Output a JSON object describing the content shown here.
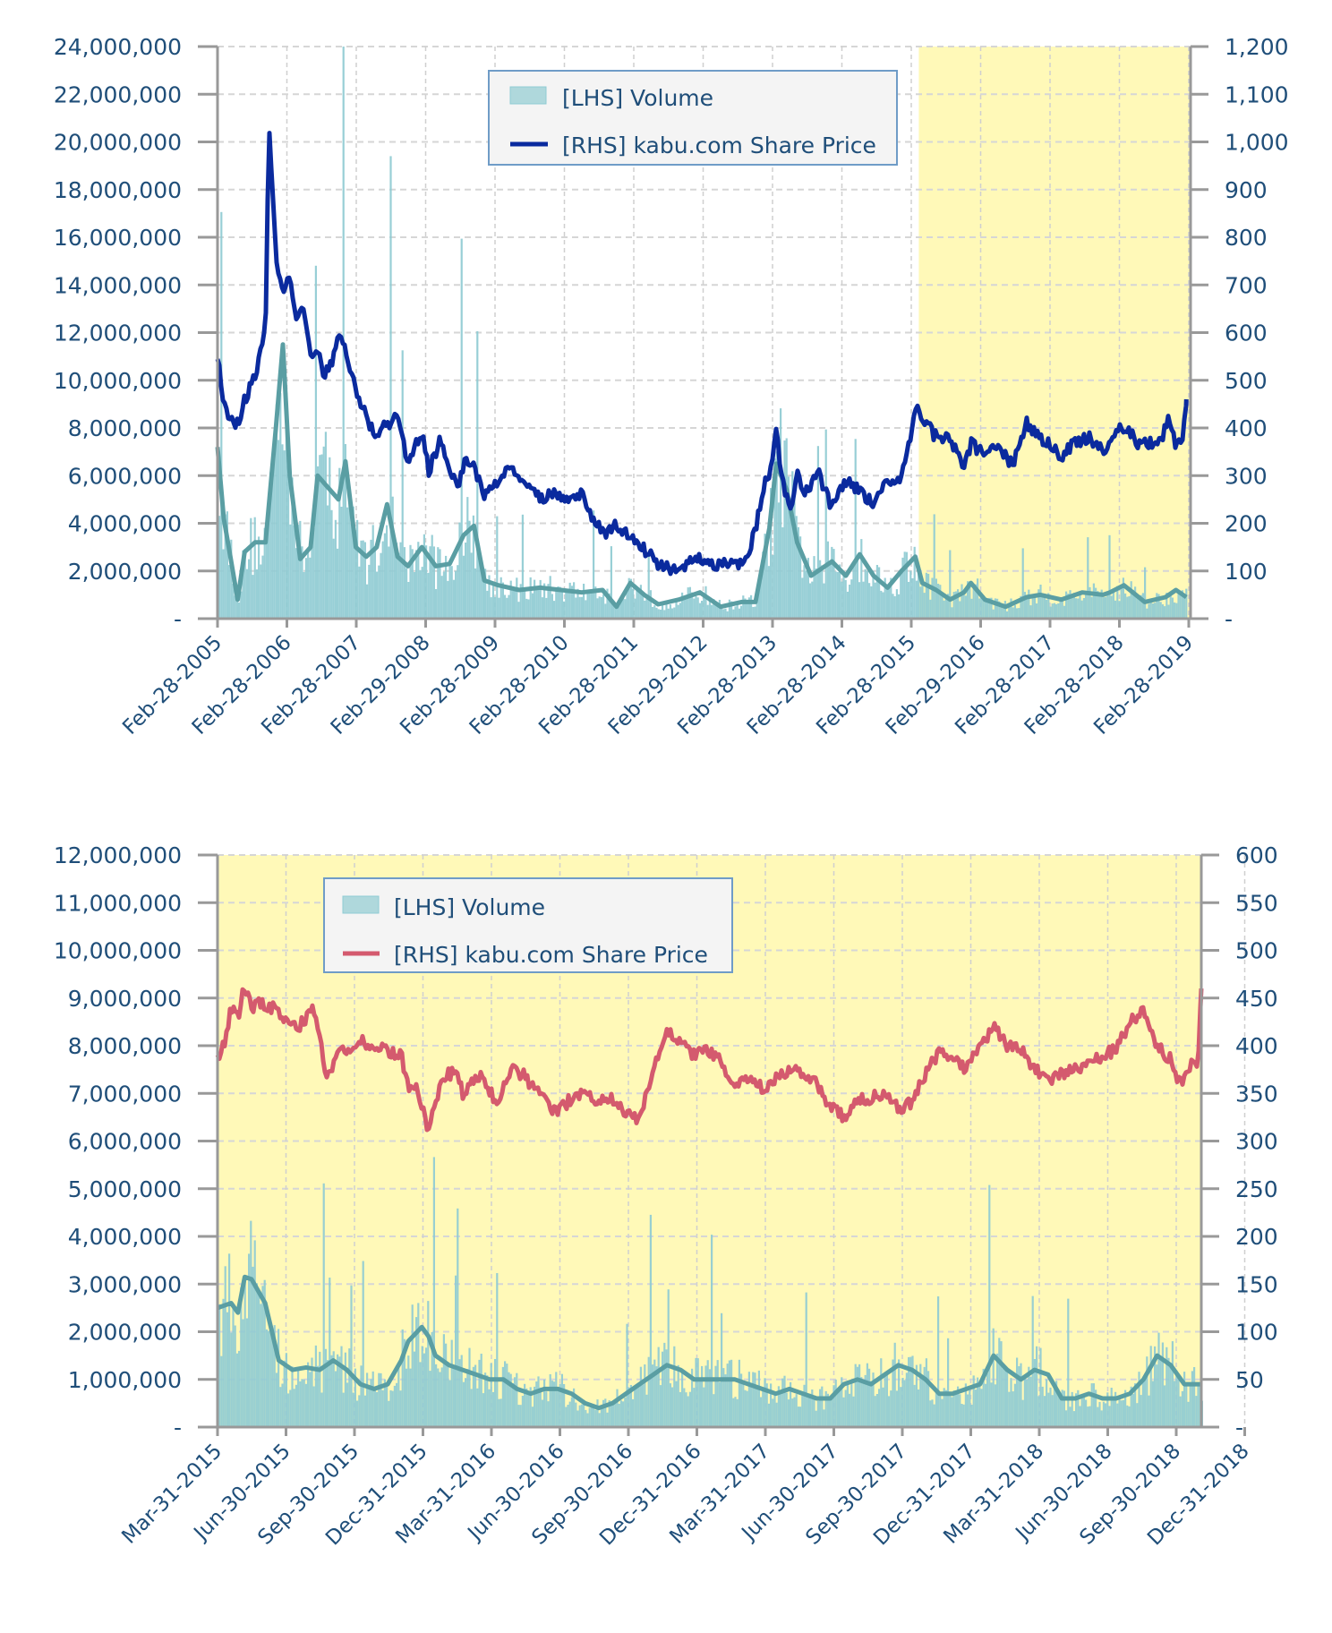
{
  "colors": {
    "volume_fill": "#8fcbd3",
    "volume_ma": "#5a9ea3",
    "price_top": "#0a2a9e",
    "price_bottom": "#d45a6e",
    "highlight": "#fff9b8",
    "axis_text": "#1f4e79"
  },
  "chart_data": [
    {
      "type": "bar+line",
      "title": "",
      "legend": {
        "position": "top-center",
        "entries": [
          {
            "label": "[LHS] Volume",
            "kind": "area"
          },
          {
            "label": "[RHS] kabu.com Share Price",
            "kind": "line"
          }
        ]
      },
      "y_left": {
        "range": [
          0,
          24000000
        ],
        "ticks": [
          0,
          2000000,
          4000000,
          6000000,
          8000000,
          10000000,
          12000000,
          14000000,
          16000000,
          18000000,
          20000000,
          22000000,
          24000000
        ],
        "tick_labels": [
          "-",
          "2,000,000",
          "4,000,000",
          "6,000,000",
          "8,000,000",
          "10,000,000",
          "12,000,000",
          "14,000,000",
          "16,000,000",
          "18,000,000",
          "20,000,000",
          "22,000,000",
          "24,000,000"
        ]
      },
      "y_right": {
        "range": [
          0,
          1200
        ],
        "ticks": [
          0,
          100,
          200,
          300,
          400,
          500,
          600,
          700,
          800,
          900,
          1000,
          1100,
          1200
        ],
        "tick_labels": [
          "-",
          "100",
          "200",
          "300",
          "400",
          "500",
          "600",
          "700",
          "800",
          "900",
          "1,000",
          "1,100",
          "1,200"
        ]
      },
      "x": {
        "range_years": [
          2005.16,
          2019.2
        ],
        "tick_labels": [
          "Feb-28-2005",
          "Feb-28-2006",
          "Feb-28-2007",
          "Feb-29-2008",
          "Feb-28-2009",
          "Feb-28-2010",
          "Feb-28-2011",
          "Feb-29-2012",
          "Feb-28-2013",
          "Feb-28-2014",
          "Feb-28-2015",
          "Feb-29-2016",
          "Feb-28-2017",
          "Feb-28-2018",
          "Feb-28-2019"
        ]
      },
      "highlight_region_years": [
        2015.25,
        2019.16
      ],
      "grid": true,
      "price_series": {
        "name": "[RHS] kabu.com Share Price",
        "x_years": [
          2005.16,
          2005.25,
          2005.35,
          2005.45,
          2005.55,
          2005.65,
          2005.75,
          2005.85,
          2005.9,
          2005.95,
          2006.0,
          2006.1,
          2006.2,
          2006.3,
          2006.4,
          2006.5,
          2006.6,
          2006.7,
          2006.8,
          2006.9,
          2007.0,
          2007.1,
          2007.2,
          2007.3,
          2007.45,
          2007.6,
          2007.75,
          2007.9,
          2008.1,
          2008.2,
          2008.35,
          2008.5,
          2008.6,
          2008.75,
          2008.9,
          2009.0,
          2009.2,
          2009.4,
          2009.6,
          2009.8,
          2010.0,
          2010.2,
          2010.4,
          2010.6,
          2010.75,
          2010.9,
          2011.1,
          2011.3,
          2011.5,
          2011.7,
          2011.9,
          2012.1,
          2012.3,
          2012.5,
          2012.7,
          2012.9,
          2013.0,
          2013.1,
          2013.2,
          2013.3,
          2013.4,
          2013.5,
          2013.6,
          2013.8,
          2014.0,
          2014.2,
          2014.4,
          2014.6,
          2014.8,
          2015.0,
          2015.1,
          2015.2,
          2015.3,
          2015.5,
          2015.7,
          2015.9,
          2016.0,
          2016.2,
          2016.4,
          2016.6,
          2016.8,
          2016.9,
          2017.1,
          2017.3,
          2017.5,
          2017.7,
          2017.9,
          2018.0,
          2018.2,
          2018.4,
          2018.6,
          2018.75,
          2018.85,
          2018.95,
          2019.05,
          2019.1
        ],
        "values": [
          555,
          450,
          420,
          410,
          460,
          490,
          540,
          600,
          1050,
          900,
          760,
          690,
          720,
          620,
          650,
          540,
          560,
          510,
          540,
          590,
          560,
          500,
          460,
          420,
          380,
          410,
          420,
          330,
          390,
          310,
          370,
          320,
          270,
          340,
          300,
          260,
          290,
          320,
          280,
          250,
          270,
          250,
          260,
          200,
          180,
          195,
          170,
          145,
          115,
          105,
          110,
          130,
          110,
          115,
          110,
          180,
          270,
          300,
          390,
          280,
          230,
          310,
          260,
          310,
          230,
          290,
          270,
          240,
          290,
          300,
          360,
          440,
          420,
          380,
          380,
          310,
          370,
          340,
          360,
          320,
          410,
          390,
          370,
          340,
          370,
          380,
          350,
          380,
          400,
          370,
          370,
          380,
          420,
          360,
          380,
          460
        ]
      },
      "volume_ma_series": {
        "name": "Volume moving average",
        "x_years": [
          2005.16,
          2005.25,
          2005.35,
          2005.45,
          2005.55,
          2005.7,
          2005.85,
          2006.0,
          2006.1,
          2006.2,
          2006.35,
          2006.5,
          2006.6,
          2006.75,
          2006.9,
          2007.0,
          2007.15,
          2007.3,
          2007.45,
          2007.6,
          2007.75,
          2007.9,
          2008.1,
          2008.3,
          2008.5,
          2008.7,
          2008.85,
          2009.0,
          2009.2,
          2009.5,
          2009.8,
          2010.1,
          2010.4,
          2010.7,
          2010.9,
          2011.1,
          2011.3,
          2011.5,
          2011.8,
          2012.1,
          2012.4,
          2012.7,
          2012.9,
          2013.1,
          2013.2,
          2013.35,
          2013.5,
          2013.7,
          2014.0,
          2014.2,
          2014.4,
          2014.6,
          2014.8,
          2015.0,
          2015.2,
          2015.3,
          2015.5,
          2015.7,
          2015.9,
          2016.0,
          2016.2,
          2016.5,
          2016.8,
          2017.0,
          2017.3,
          2017.6,
          2017.9,
          2018.0,
          2018.2,
          2018.5,
          2018.8,
          2018.95,
          2019.1
        ],
        "values": [
          7200000,
          4200000,
          2500000,
          800000,
          2800000,
          3200000,
          3200000,
          8000000,
          11500000,
          6000000,
          2500000,
          3000000,
          6000000,
          5500000,
          5000000,
          6600000,
          3000000,
          2600000,
          3000000,
          4800000,
          2600000,
          2200000,
          3000000,
          2200000,
          2300000,
          3500000,
          3900000,
          1600000,
          1400000,
          1200000,
          1300000,
          1200000,
          1100000,
          1200000,
          500000,
          1500000,
          1000000,
          600000,
          800000,
          1100000,
          500000,
          700000,
          700000,
          3800000,
          6500000,
          5400000,
          3200000,
          1800000,
          2400000,
          1800000,
          2700000,
          1800000,
          1300000,
          2000000,
          2600000,
          1500000,
          1200000,
          800000,
          1100000,
          1500000,
          800000,
          500000,
          900000,
          1000000,
          800000,
          1100000,
          1000000,
          1100000,
          1400000,
          700000,
          900000,
          1200000,
          900000
        ]
      }
    },
    {
      "type": "bar+line",
      "title": "",
      "legend": {
        "position": "top-left",
        "entries": [
          {
            "label": "[LHS] Volume",
            "kind": "area"
          },
          {
            "label": "[RHS] kabu.com Share Price",
            "kind": "line"
          }
        ]
      },
      "y_left": {
        "range": [
          0,
          12000000
        ],
        "ticks": [
          0,
          1000000,
          2000000,
          3000000,
          4000000,
          5000000,
          6000000,
          7000000,
          8000000,
          9000000,
          10000000,
          11000000,
          12000000
        ],
        "tick_labels": [
          "-",
          "1,000,000",
          "2,000,000",
          "3,000,000",
          "4,000,000",
          "5,000,000",
          "6,000,000",
          "7,000,000",
          "8,000,000",
          "9,000,000",
          "10,000,000",
          "11,000,000",
          "12,000,000"
        ]
      },
      "y_right": {
        "range": [
          0,
          600
        ],
        "ticks": [
          0,
          50,
          100,
          150,
          200,
          250,
          300,
          350,
          400,
          450,
          500,
          550,
          600
        ],
        "tick_labels": [
          "-",
          "50",
          "100",
          "150",
          "200",
          "250",
          "300",
          "350",
          "400",
          "450",
          "500",
          "550",
          "600"
        ]
      },
      "x": {
        "range_quarters": [
          0,
          14.45
        ],
        "tick_labels": [
          "Mar-31-2015",
          "Jun-30-2015",
          "Sep-30-2015",
          "Dec-31-2015",
          "Mar-31-2016",
          "Jun-30-2016",
          "Sep-30-2016",
          "Dec-31-2016",
          "Mar-31-2017",
          "Jun-30-2017",
          "Sep-30-2017",
          "Dec-31-2017",
          "Mar-31-2018",
          "Jun-30-2018",
          "Sep-30-2018",
          "Dec-31-2018"
        ]
      },
      "highlight_region": "full",
      "grid": true,
      "price_series": {
        "name": "[RHS] kabu.com Share Price",
        "x_quarters": [
          0.0,
          0.1,
          0.2,
          0.3,
          0.4,
          0.5,
          0.6,
          0.8,
          1.0,
          1.2,
          1.3,
          1.4,
          1.5,
          1.6,
          1.8,
          2.0,
          2.1,
          2.3,
          2.5,
          2.7,
          2.8,
          2.9,
          3.0,
          3.1,
          3.3,
          3.5,
          3.6,
          3.8,
          3.9,
          4.1,
          4.3,
          4.5,
          4.7,
          4.9,
          5.0,
          5.2,
          5.4,
          5.6,
          5.8,
          6.0,
          6.2,
          6.4,
          6.6,
          6.8,
          7.0,
          7.2,
          7.4,
          7.5,
          7.6,
          7.8,
          8.0,
          8.2,
          8.4,
          8.6,
          8.8,
          9.0,
          9.2,
          9.4,
          9.6,
          9.8,
          10.0,
          10.2,
          10.4,
          10.6,
          10.8,
          11.0,
          11.2,
          11.4,
          11.6,
          11.8,
          12.0,
          12.2,
          12.4,
          12.6,
          12.8,
          13.0,
          13.2,
          13.4,
          13.6,
          13.8,
          14.0,
          14.1,
          14.2,
          14.3,
          14.4,
          14.45
        ],
        "values": [
          390,
          400,
          440,
          430,
          465,
          440,
          445,
          440,
          430,
          420,
          430,
          445,
          415,
          365,
          400,
          395,
          405,
          400,
          395,
          390,
          355,
          360,
          335,
          310,
          365,
          375,
          350,
          370,
          365,
          340,
          375,
          370,
          350,
          335,
          330,
          345,
          350,
          340,
          345,
          330,
          320,
          380,
          415,
          405,
          390,
          395,
          385,
          360,
          355,
          365,
          355,
          365,
          375,
          370,
          360,
          335,
          325,
          345,
          345,
          350,
          335,
          340,
          370,
          395,
          385,
          375,
          400,
          420,
          400,
          395,
          375,
          365,
          370,
          375,
          380,
          390,
          395,
          425,
          435,
          400,
          385,
          360,
          365,
          380,
          380,
          460
        ]
      },
      "volume_ma_series": {
        "name": "Volume moving average",
        "x_quarters": [
          0.0,
          0.2,
          0.3,
          0.4,
          0.5,
          0.7,
          0.9,
          1.1,
          1.3,
          1.5,
          1.7,
          1.9,
          2.1,
          2.3,
          2.5,
          2.7,
          2.8,
          3.0,
          3.1,
          3.2,
          3.4,
          3.6,
          3.8,
          4.0,
          4.2,
          4.4,
          4.6,
          4.8,
          5.0,
          5.2,
          5.4,
          5.6,
          5.8,
          6.0,
          6.2,
          6.4,
          6.6,
          6.8,
          7.0,
          7.2,
          7.4,
          7.6,
          7.8,
          8.0,
          8.2,
          8.4,
          8.6,
          8.8,
          9.0,
          9.2,
          9.4,
          9.6,
          9.8,
          10.0,
          10.2,
          10.4,
          10.6,
          10.8,
          11.0,
          11.2,
          11.4,
          11.6,
          11.8,
          12.0,
          12.2,
          12.4,
          12.6,
          12.8,
          13.0,
          13.2,
          13.4,
          13.6,
          13.8,
          14.0,
          14.2,
          14.45
        ],
        "values": [
          2500000,
          2600000,
          2400000,
          3150000,
          3100000,
          2600000,
          1400000,
          1200000,
          1250000,
          1200000,
          1400000,
          1200000,
          900000,
          800000,
          900000,
          1400000,
          1800000,
          2100000,
          1900000,
          1500000,
          1300000,
          1200000,
          1100000,
          1000000,
          1000000,
          800000,
          700000,
          800000,
          800000,
          700000,
          500000,
          400000,
          500000,
          700000,
          900000,
          1100000,
          1300000,
          1200000,
          1000000,
          1000000,
          1000000,
          1000000,
          900000,
          800000,
          700000,
          800000,
          700000,
          600000,
          600000,
          900000,
          1000000,
          900000,
          1100000,
          1300000,
          1200000,
          1000000,
          700000,
          700000,
          800000,
          900000,
          1500000,
          1200000,
          1000000,
          1200000,
          1100000,
          600000,
          600000,
          700000,
          600000,
          600000,
          700000,
          1000000,
          1500000,
          1300000,
          900000,
          900000
        ]
      }
    }
  ]
}
